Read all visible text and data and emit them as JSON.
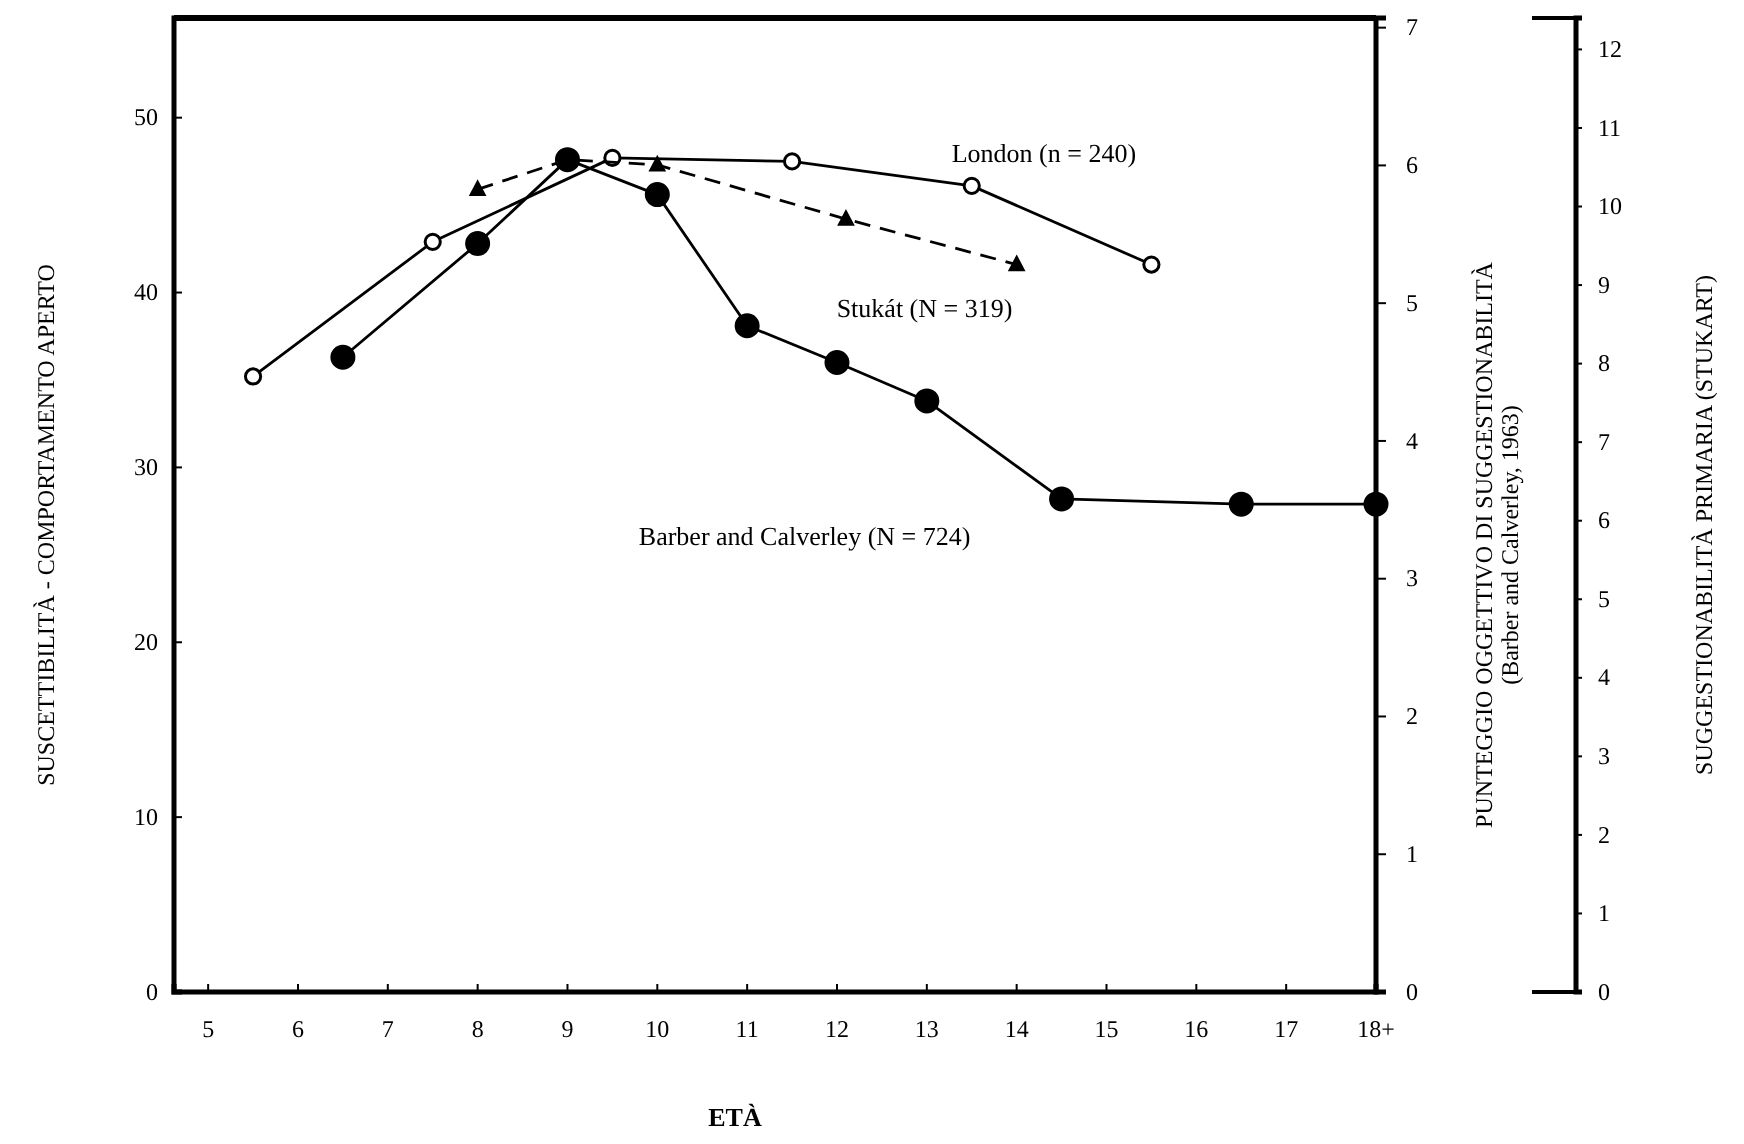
{
  "chart_data": {
    "type": "line",
    "xlabel": "ETÀ",
    "ylabel": "SUSCETTIBILITÀ - COMPORTAMENTO APERTO",
    "y2label": "SUGGESTIONABILITÀ PRIMARIA (STUKART)",
    "y3label": "PUNTEGGIO OGGETTIVO DI SUGGESTIONABILITÀ\n(Barber and Calverley, 1963)",
    "xlim": [
      4.62,
      18
    ],
    "xticks": [
      5,
      6,
      7,
      8,
      9,
      10,
      11,
      12,
      13,
      14,
      15,
      16,
      17,
      {
        "value": 18,
        "label": "18+"
      }
    ],
    "ylim": [
      0,
      55.7
    ],
    "yticks": [
      0,
      10,
      20,
      30,
      40,
      50
    ],
    "y2lim": [
      0,
      12.4
    ],
    "y2ticks": [
      0,
      1,
      2,
      3,
      4,
      5,
      6,
      7,
      8,
      9,
      10,
      11,
      12
    ],
    "y3lim": [
      0,
      7.07
    ],
    "y3ticks": [
      0,
      1,
      2,
      3,
      4,
      5,
      6,
      7
    ],
    "grid": false,
    "series": [
      {
        "name": "London (n = 240)",
        "color": "#000000",
        "marker": "circle-open",
        "line_style": "solid",
        "x": [
          5.5,
          7.5,
          9.5,
          11.5,
          13.5,
          15.5
        ],
        "values": [
          35.2,
          42.9,
          47.7,
          47.5,
          46.1,
          41.6
        ]
      },
      {
        "name": "Stukát (N = 319)",
        "color": "#000000",
        "marker": "triangle",
        "line_style": "dashed",
        "x": [
          8,
          9,
          10,
          12.1,
          14
        ],
        "values": [
          45.9,
          47.6,
          47.3,
          44.2,
          41.6
        ]
      },
      {
        "name": "Barber and Calverley (N = 724)",
        "color": "#000000",
        "marker": "circle",
        "line_style": "solid",
        "x": [
          6.5,
          8,
          9,
          10,
          11,
          12,
          13,
          14.5,
          16.5,
          18
        ],
        "values": [
          36.3,
          42.8,
          47.6,
          45.6,
          38.1,
          36.0,
          33.8,
          28.2,
          27.9,
          27.9
        ]
      }
    ]
  }
}
